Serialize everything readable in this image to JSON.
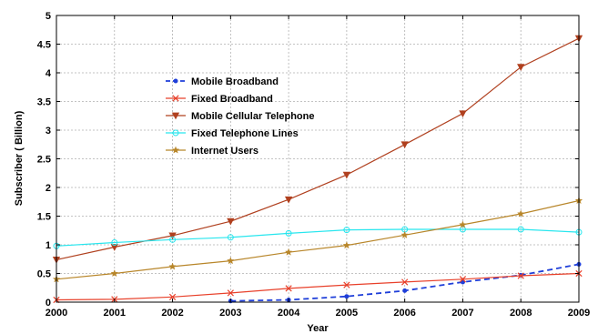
{
  "chart_data": {
    "type": "line",
    "title": "",
    "xlabel": "Year",
    "ylabel": "Subscriber ( Billion)",
    "x": [
      2000,
      2001,
      2002,
      2003,
      2004,
      2005,
      2006,
      2007,
      2008,
      2009
    ],
    "xlim": [
      2000,
      2009
    ],
    "ylim": [
      0,
      5
    ],
    "yticks": [
      0,
      0.5,
      1,
      1.5,
      2,
      2.5,
      3,
      3.5,
      4,
      4.5,
      5
    ],
    "ytick_labels": [
      "0",
      "0.5",
      "1",
      "1.5",
      "2",
      "2.5",
      "3",
      "3.5",
      "4",
      "4.5",
      "5"
    ],
    "xtick_labels": [
      "2000",
      "2001",
      "2002",
      "2003",
      "2004",
      "2005",
      "2006",
      "2007",
      "2008",
      "2009"
    ],
    "grid": true,
    "legend_position": "upper-left (inside plot)",
    "series": [
      {
        "name": "Mobile Broadband",
        "color": "#1f3fd9",
        "marker": "dot",
        "dash": "dashed",
        "values": [
          null,
          null,
          null,
          0.02,
          0.04,
          0.1,
          0.2,
          0.35,
          0.47,
          0.66
        ]
      },
      {
        "name": "Fixed Broadband",
        "color": "#e8402a",
        "marker": "x",
        "dash": "solid",
        "values": [
          0.04,
          0.05,
          0.09,
          0.16,
          0.24,
          0.3,
          0.35,
          0.4,
          0.46,
          0.5
        ]
      },
      {
        "name": "Mobile Cellular Telephone",
        "color": "#b0401f",
        "marker": "triangle-down",
        "dash": "solid",
        "values": [
          0.74,
          0.96,
          1.16,
          1.41,
          1.79,
          2.22,
          2.75,
          3.29,
          4.1,
          4.6
        ]
      },
      {
        "name": "Fixed Telephone Lines",
        "color": "#27e6ee",
        "marker": "circle",
        "dash": "solid",
        "values": [
          0.98,
          1.04,
          1.09,
          1.13,
          1.2,
          1.26,
          1.27,
          1.27,
          1.27,
          1.22
        ]
      },
      {
        "name": "Internet Users",
        "color": "#b8862a",
        "marker": "star",
        "dash": "solid",
        "values": [
          0.4,
          0.5,
          0.62,
          0.72,
          0.87,
          0.99,
          1.17,
          1.35,
          1.54,
          1.77
        ]
      }
    ]
  }
}
